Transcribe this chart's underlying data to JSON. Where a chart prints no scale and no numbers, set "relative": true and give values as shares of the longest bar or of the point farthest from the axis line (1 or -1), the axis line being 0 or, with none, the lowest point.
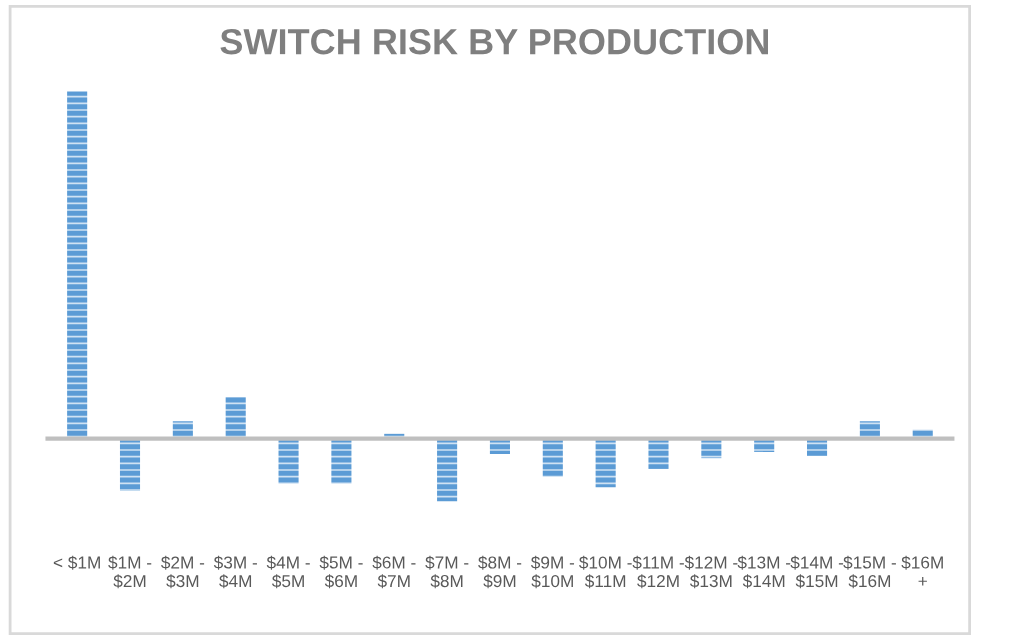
{
  "chart_data": {
    "type": "bar",
    "title": "SWITCH RISK BY PRODUCTION",
    "relative": true,
    "color": "#5b9bd5",
    "grid": false,
    "legend": false,
    "categories": [
      "< $1M",
      "$1M -\n$2M",
      "$2M -\n$3M",
      "$3M -\n$4M",
      "$4M -\n$5M",
      "$5M -\n$6M",
      "$6M -\n$7M",
      "$7M -\n$8M",
      "$8M -\n$9M",
      "$9M -\n$10M",
      "$10M -\n$11M",
      "$11M -\n$12M",
      "$12M -\n$13M",
      "$13M -\n$14M",
      "$14M -\n$15M",
      "$15M -\n$16M",
      "$16M\n+"
    ],
    "values": [
      1,
      -0.15,
      0.05,
      0.12,
      -0.13,
      -0.13,
      0.014,
      -0.18,
      -0.044,
      -0.11,
      -0.14,
      -0.087,
      -0.056,
      -0.038,
      -0.05,
      0.05,
      0.026
    ]
  }
}
